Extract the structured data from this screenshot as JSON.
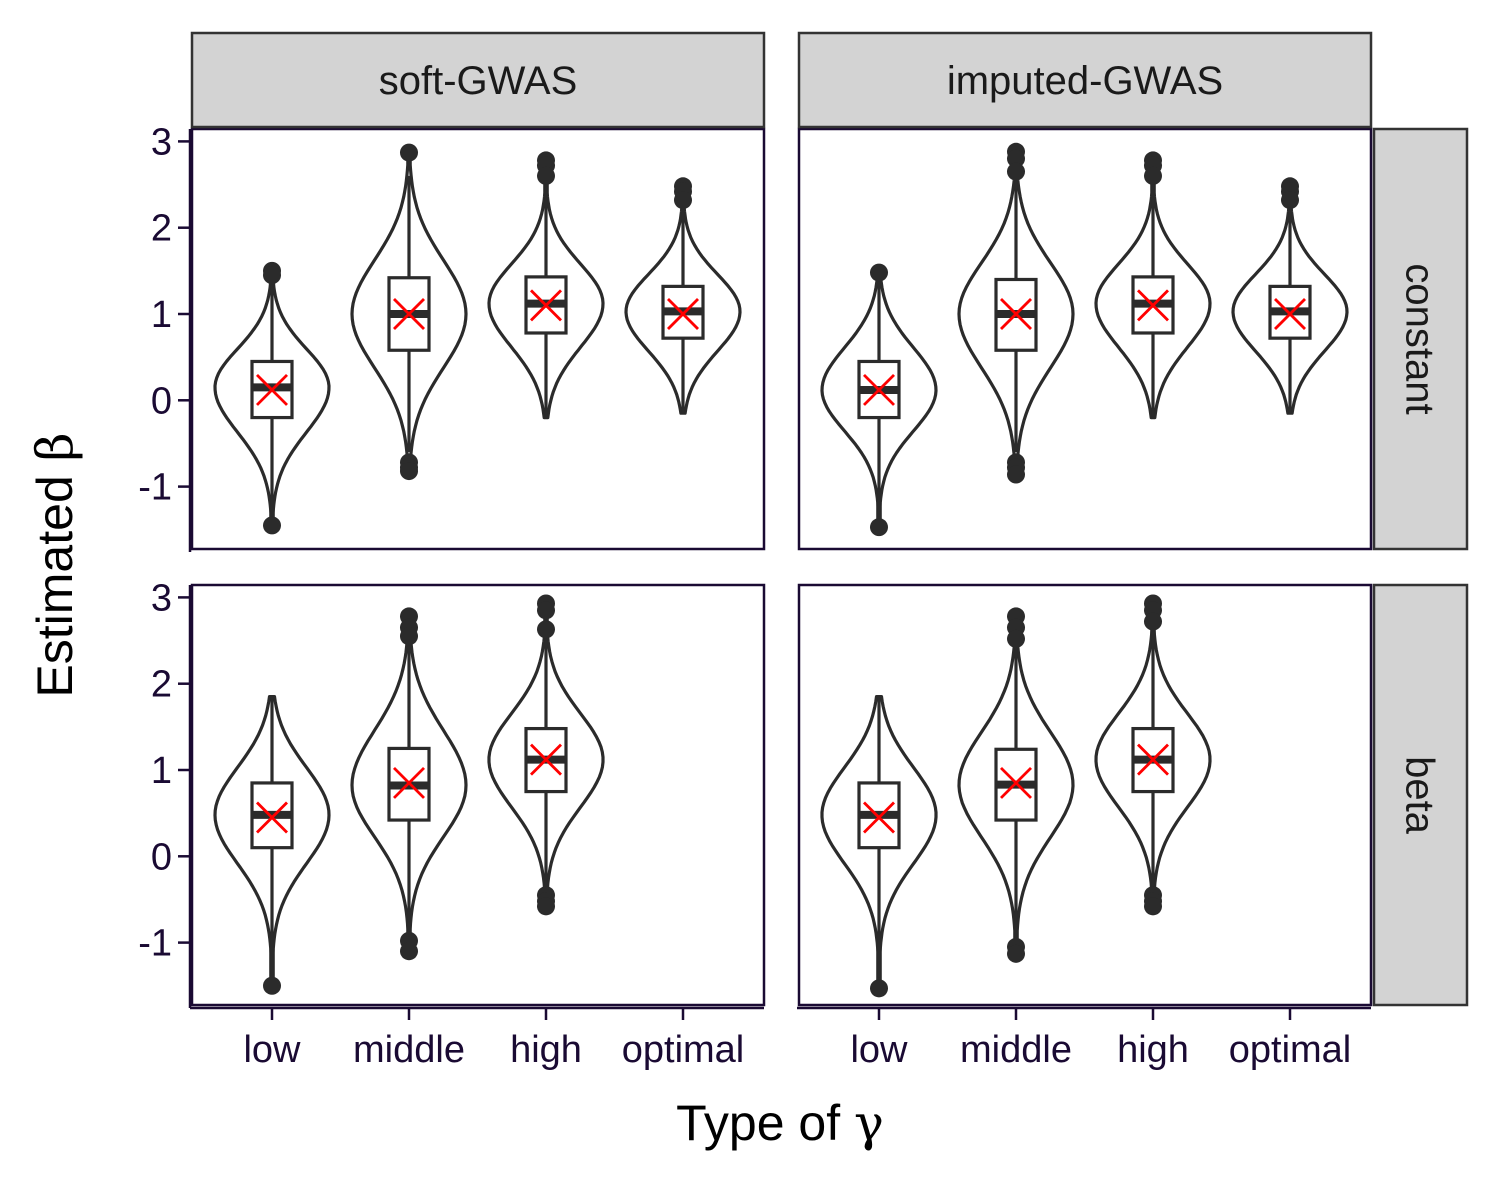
{
  "chart_data": {
    "type": "violin",
    "xlabel_text": "Type of ",
    "xlabel_symbol": "γ",
    "ylabel_text": "Estimated ",
    "ylabel_symbol": "β",
    "categories": [
      "low",
      "middle",
      "high",
      "optimal"
    ],
    "y_ticks": [
      3,
      2,
      1,
      0,
      -1
    ],
    "ylim": [
      -1.7,
      3.15
    ],
    "col_facets": [
      "soft-GWAS",
      "imputed-GWAS"
    ],
    "row_facets": [
      "constant",
      "beta"
    ],
    "colors": {
      "mean": "#ff0000",
      "outline": "#2b2b2b",
      "strip": "#d3d3d3"
    },
    "panels": [
      {
        "col": "soft-GWAS",
        "row": "constant",
        "groups": [
          {
            "category": "low",
            "violin_min": -1.4,
            "violin_max": 1.45,
            "q1": -0.2,
            "median": 0.15,
            "q3": 0.45,
            "mean": 0.12,
            "whisker_low": -1.3,
            "whisker_high": 1.4,
            "outliers": [
              1.5,
              1.45,
              -1.45
            ]
          },
          {
            "category": "middle",
            "violin_min": -0.85,
            "violin_max": 2.85,
            "q1": 0.58,
            "median": 1.0,
            "q3": 1.42,
            "mean": 1.0,
            "whisker_low": -0.6,
            "whisker_high": 2.6,
            "outliers": [
              2.87,
              -0.72,
              -0.78,
              -0.82
            ]
          },
          {
            "category": "high",
            "violin_min": -0.2,
            "violin_max": 2.75,
            "q1": 0.78,
            "median": 1.12,
            "q3": 1.43,
            "mean": 1.1,
            "whisker_low": -0.2,
            "whisker_high": 2.5,
            "outliers": [
              2.78,
              2.72,
              2.6
            ]
          },
          {
            "category": "optimal",
            "violin_min": -0.15,
            "violin_max": 2.45,
            "q1": 0.72,
            "median": 1.03,
            "q3": 1.32,
            "mean": 1.0,
            "whisker_low": -0.15,
            "whisker_high": 2.2,
            "outliers": [
              2.48,
              2.42,
              2.32
            ]
          }
        ]
      },
      {
        "col": "imputed-GWAS",
        "row": "constant",
        "groups": [
          {
            "category": "low",
            "violin_min": -1.42,
            "violin_max": 1.45,
            "q1": -0.2,
            "median": 0.12,
            "q3": 0.45,
            "mean": 0.12,
            "whisker_low": -1.3,
            "whisker_high": 1.4,
            "outliers": [
              1.48,
              -1.47
            ]
          },
          {
            "category": "middle",
            "violin_min": -0.85,
            "violin_max": 2.85,
            "q1": 0.58,
            "median": 1.0,
            "q3": 1.4,
            "mean": 1.0,
            "whisker_low": -0.6,
            "whisker_high": 2.6,
            "outliers": [
              2.88,
              2.8,
              2.65,
              -0.72,
              -0.78,
              -0.86
            ]
          },
          {
            "category": "high",
            "violin_min": -0.2,
            "violin_max": 2.75,
            "q1": 0.78,
            "median": 1.12,
            "q3": 1.43,
            "mean": 1.1,
            "whisker_low": -0.2,
            "whisker_high": 2.5,
            "outliers": [
              2.78,
              2.72,
              2.6
            ]
          },
          {
            "category": "optimal",
            "violin_min": -0.15,
            "violin_max": 2.45,
            "q1": 0.72,
            "median": 1.03,
            "q3": 1.32,
            "mean": 1.0,
            "whisker_low": -0.15,
            "whisker_high": 2.2,
            "outliers": [
              2.48,
              2.42,
              2.32
            ]
          }
        ]
      },
      {
        "col": "soft-GWAS",
        "row": "beta",
        "groups": [
          {
            "category": "low",
            "violin_min": -1.45,
            "violin_max": 1.85,
            "q1": 0.1,
            "median": 0.48,
            "q3": 0.85,
            "mean": 0.45,
            "whisker_low": -1.4,
            "whisker_high": 1.85,
            "outliers": [
              -1.5
            ]
          },
          {
            "category": "middle",
            "violin_min": -1.1,
            "violin_max": 2.75,
            "q1": 0.42,
            "median": 0.82,
            "q3": 1.25,
            "mean": 0.85,
            "whisker_low": -0.9,
            "whisker_high": 2.45,
            "outliers": [
              2.78,
              2.65,
              2.55,
              -0.98,
              -1.1
            ]
          },
          {
            "category": "high",
            "violin_min": -0.6,
            "violin_max": 2.9,
            "q1": 0.75,
            "median": 1.12,
            "q3": 1.48,
            "mean": 1.12,
            "whisker_low": -0.45,
            "whisker_high": 2.6,
            "outliers": [
              2.93,
              2.85,
              2.63,
              -0.45,
              -0.52,
              -0.58
            ]
          }
        ]
      },
      {
        "col": "imputed-GWAS",
        "row": "beta",
        "groups": [
          {
            "category": "low",
            "violin_min": -1.5,
            "violin_max": 1.85,
            "q1": 0.1,
            "median": 0.48,
            "q3": 0.85,
            "mean": 0.45,
            "whisker_low": -1.4,
            "whisker_high": 1.85,
            "outliers": [
              -1.53
            ]
          },
          {
            "category": "middle",
            "violin_min": -1.12,
            "violin_max": 2.75,
            "q1": 0.42,
            "median": 0.83,
            "q3": 1.24,
            "mean": 0.85,
            "whisker_low": -0.95,
            "whisker_high": 2.45,
            "outliers": [
              2.78,
              2.65,
              2.52,
              -1.05,
              -1.13
            ]
          },
          {
            "category": "high",
            "violin_min": -0.6,
            "violin_max": 2.92,
            "q1": 0.75,
            "median": 1.12,
            "q3": 1.48,
            "mean": 1.12,
            "whisker_low": -0.45,
            "whisker_high": 2.6,
            "outliers": [
              2.93,
              2.85,
              2.72,
              -0.45,
              -0.52,
              -0.58
            ]
          }
        ]
      }
    ]
  }
}
